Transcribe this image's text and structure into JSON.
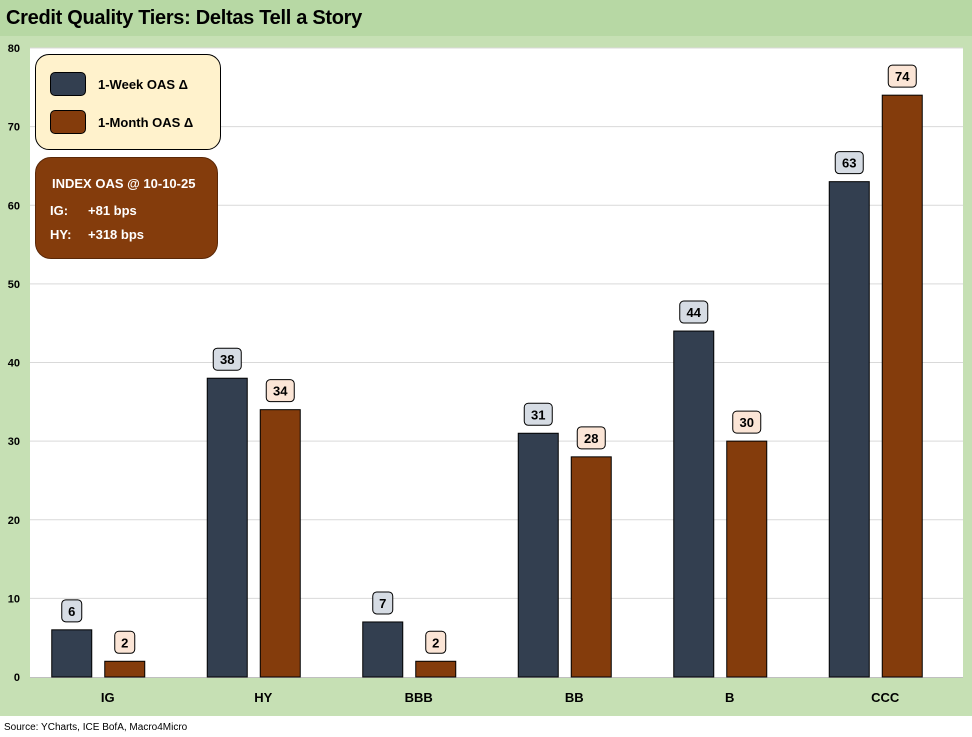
{
  "header": {
    "title": "Credit Quality Tiers: Deltas Tell a Story"
  },
  "source": "Source: YCharts, ICE BofA, Macro4Micro",
  "legend": {
    "items": [
      {
        "label": "1-Week OAS Δ",
        "color": "#333f50"
      },
      {
        "label": "1-Month OAS Δ",
        "color": "#843c0c"
      }
    ]
  },
  "info_box": {
    "title": "INDEX OAS @ 10-10-25",
    "lines": [
      {
        "key": "IG:",
        "value": "+81 bps"
      },
      {
        "key": "HY:",
        "value": "+318 bps"
      }
    ]
  },
  "colors": {
    "week_bar": "#333f50",
    "month_bar": "#843c0c",
    "week_label_bg": "#d6dce4",
    "month_label_bg": "#fbe5d6",
    "frame": "#c6e0b4",
    "gridline": "#d9d9d9"
  },
  "chart_data": {
    "type": "bar",
    "title": "Credit Quality Tiers: Deltas Tell a Story",
    "categories": [
      "IG",
      "HY",
      "BBB",
      "BB",
      "B",
      "CCC"
    ],
    "series": [
      {
        "name": "1-Week OAS Δ",
        "values": [
          6,
          38,
          7,
          31,
          44,
          63
        ]
      },
      {
        "name": "1-Month OAS Δ",
        "values": [
          2,
          34,
          2,
          28,
          30,
          74
        ]
      }
    ],
    "ylim": [
      0,
      80
    ],
    "yticks": [
      0,
      10,
      20,
      30,
      40,
      50,
      60,
      70,
      80
    ],
    "xlabel": "",
    "ylabel": "",
    "grid": true,
    "legend_position": "top-left"
  }
}
